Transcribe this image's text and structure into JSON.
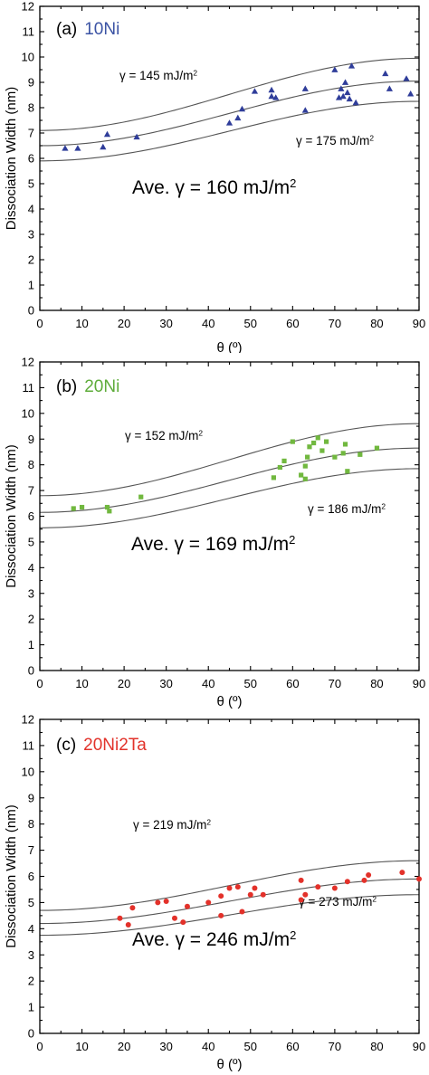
{
  "chart_data": [
    {
      "type": "scatter",
      "panel_label": "(a)",
      "sample": "10Ni",
      "sample_color": "#3b53a4",
      "marker": "triangle",
      "marker_color": "#2f3d9a",
      "xlabel": "θ (º)",
      "ylabel": "Dissociation Width (nm)",
      "xlim": [
        0,
        90
      ],
      "ylim": [
        0,
        12
      ],
      "xticks": [
        0,
        10,
        20,
        30,
        40,
        50,
        60,
        70,
        80,
        90
      ],
      "yticks": [
        0,
        1,
        2,
        3,
        4,
        5,
        6,
        7,
        8,
        9,
        10,
        11,
        12
      ],
      "grid": false,
      "fit_curves": [
        {
          "gamma": "γ = 145 mJ/m",
          "sup": "2",
          "w0": 7.1,
          "w90": 9.95
        },
        {
          "gamma": "",
          "sup": "",
          "w0": 6.5,
          "w90": 9.05
        },
        {
          "gamma": "γ = 175 mJ/m",
          "sup": "2",
          "w0": 5.9,
          "w90": 8.25
        }
      ],
      "average": "Ave. γ = 160 mJ/m",
      "average_sup": "2",
      "points": [
        {
          "x": 6,
          "y": 6.4
        },
        {
          "x": 9,
          "y": 6.4
        },
        {
          "x": 15,
          "y": 6.45
        },
        {
          "x": 16,
          "y": 6.95
        },
        {
          "x": 23,
          "y": 6.85
        },
        {
          "x": 45,
          "y": 7.4
        },
        {
          "x": 47,
          "y": 7.6
        },
        {
          "x": 48,
          "y": 7.95
        },
        {
          "x": 51,
          "y": 8.65
        },
        {
          "x": 55,
          "y": 8.45
        },
        {
          "x": 55,
          "y": 8.7
        },
        {
          "x": 56,
          "y": 8.4
        },
        {
          "x": 63,
          "y": 7.9
        },
        {
          "x": 63,
          "y": 8.75
        },
        {
          "x": 70,
          "y": 9.5
        },
        {
          "x": 71,
          "y": 8.4
        },
        {
          "x": 71.5,
          "y": 8.75
        },
        {
          "x": 72,
          "y": 8.45
        },
        {
          "x": 72.5,
          "y": 9.0
        },
        {
          "x": 73,
          "y": 8.6
        },
        {
          "x": 73.5,
          "y": 8.35
        },
        {
          "x": 74,
          "y": 9.65
        },
        {
          "x": 75,
          "y": 8.2
        },
        {
          "x": 82,
          "y": 9.35
        },
        {
          "x": 83,
          "y": 8.75
        },
        {
          "x": 87,
          "y": 9.15
        },
        {
          "x": 88,
          "y": 8.55
        }
      ]
    },
    {
      "type": "scatter",
      "panel_label": "(b)",
      "sample": "20Ni",
      "sample_color": "#5eac3a",
      "marker": "square",
      "marker_color": "#71b83f",
      "xlabel": "θ (º)",
      "ylabel": "Dissociation Width (nm)",
      "xlim": [
        0,
        90
      ],
      "ylim": [
        0,
        12
      ],
      "xticks": [
        0,
        10,
        20,
        30,
        40,
        50,
        60,
        70,
        80,
        90
      ],
      "yticks": [
        0,
        1,
        2,
        3,
        4,
        5,
        6,
        7,
        8,
        9,
        10,
        11,
        12
      ],
      "grid": false,
      "fit_curves": [
        {
          "gamma": "γ = 152 mJ/m",
          "sup": "2",
          "w0": 6.8,
          "w90": 9.6
        },
        {
          "gamma": "",
          "sup": "",
          "w0": 6.15,
          "w90": 8.65
        },
        {
          "gamma": "γ = 186 mJ/m",
          "sup": "2",
          "w0": 5.55,
          "w90": 7.85
        }
      ],
      "average": "Ave. γ = 169 mJ/m",
      "average_sup": "2",
      "points": [
        {
          "x": 8,
          "y": 6.3
        },
        {
          "x": 10,
          "y": 6.35
        },
        {
          "x": 16,
          "y": 6.35
        },
        {
          "x": 16.5,
          "y": 6.2
        },
        {
          "x": 24,
          "y": 6.75
        },
        {
          "x": 55.5,
          "y": 7.5
        },
        {
          "x": 57,
          "y": 7.9
        },
        {
          "x": 58,
          "y": 8.15
        },
        {
          "x": 60,
          "y": 8.9
        },
        {
          "x": 62,
          "y": 7.6
        },
        {
          "x": 63,
          "y": 7.45
        },
        {
          "x": 63,
          "y": 7.95
        },
        {
          "x": 63.5,
          "y": 8.3
        },
        {
          "x": 64,
          "y": 8.7
        },
        {
          "x": 65,
          "y": 8.85
        },
        {
          "x": 66,
          "y": 9.05
        },
        {
          "x": 67,
          "y": 8.55
        },
        {
          "x": 68,
          "y": 8.9
        },
        {
          "x": 70,
          "y": 8.3
        },
        {
          "x": 72,
          "y": 8.45
        },
        {
          "x": 72.5,
          "y": 8.8
        },
        {
          "x": 73,
          "y": 7.75
        },
        {
          "x": 76,
          "y": 8.4
        },
        {
          "x": 80,
          "y": 8.65
        }
      ]
    },
    {
      "type": "scatter",
      "panel_label": "(c)",
      "sample": "20Ni2Ta",
      "sample_color": "#e2332b",
      "marker": "circle",
      "marker_color": "#e3312a",
      "xlabel": "θ (º)",
      "ylabel": "Dissociation Width (nm)",
      "xlim": [
        0,
        90
      ],
      "ylim": [
        0,
        12
      ],
      "xticks": [
        0,
        10,
        20,
        30,
        40,
        50,
        60,
        70,
        80,
        90
      ],
      "yticks": [
        0,
        1,
        2,
        3,
        4,
        5,
        6,
        7,
        8,
        9,
        10,
        11,
        12
      ],
      "grid": false,
      "fit_curves": [
        {
          "gamma": "γ = 219 mJ/m",
          "sup": "2",
          "w0": 4.7,
          "w90": 6.6
        },
        {
          "gamma": "",
          "sup": "",
          "w0": 4.2,
          "w90": 5.9
        },
        {
          "gamma": "γ = 273 mJ/m",
          "sup": "2",
          "w0": 3.75,
          "w90": 5.3
        }
      ],
      "average": "Ave. γ = 246 mJ/m",
      "average_sup": "2",
      "points": [
        {
          "x": 19,
          "y": 4.4
        },
        {
          "x": 21,
          "y": 4.15
        },
        {
          "x": 22,
          "y": 4.8
        },
        {
          "x": 28,
          "y": 5.0
        },
        {
          "x": 30,
          "y": 5.05
        },
        {
          "x": 32,
          "y": 4.4
        },
        {
          "x": 34,
          "y": 4.25
        },
        {
          "x": 35,
          "y": 4.85
        },
        {
          "x": 40,
          "y": 5.0
        },
        {
          "x": 43,
          "y": 4.5
        },
        {
          "x": 43,
          "y": 5.25
        },
        {
          "x": 45,
          "y": 5.55
        },
        {
          "x": 47,
          "y": 5.6
        },
        {
          "x": 48,
          "y": 4.65
        },
        {
          "x": 50,
          "y": 5.3
        },
        {
          "x": 51,
          "y": 5.55
        },
        {
          "x": 53,
          "y": 5.3
        },
        {
          "x": 62,
          "y": 5.85
        },
        {
          "x": 62,
          "y": 5.1
        },
        {
          "x": 63,
          "y": 5.3
        },
        {
          "x": 66,
          "y": 5.6
        },
        {
          "x": 70,
          "y": 5.55
        },
        {
          "x": 73,
          "y": 5.8
        },
        {
          "x": 77,
          "y": 5.85
        },
        {
          "x": 78,
          "y": 6.05
        },
        {
          "x": 86,
          "y": 6.15
        },
        {
          "x": 90,
          "y": 5.9
        }
      ]
    }
  ]
}
